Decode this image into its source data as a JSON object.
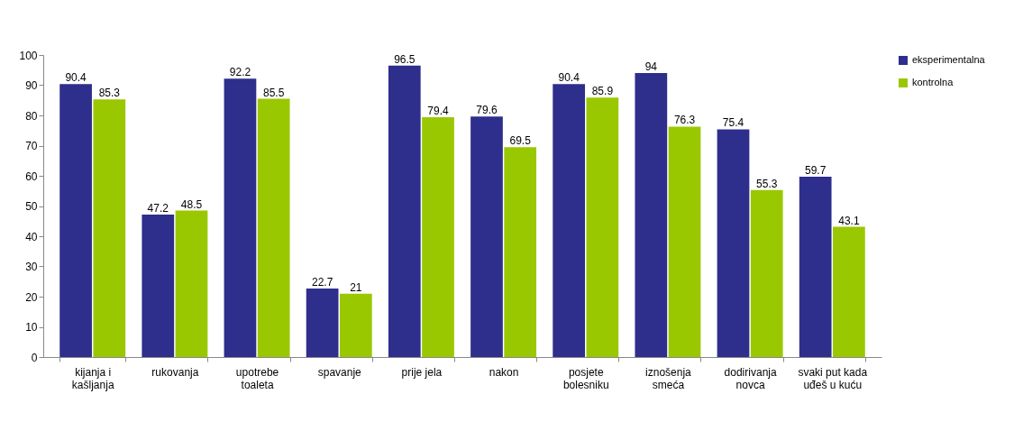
{
  "chart_data": {
    "type": "bar",
    "categories": [
      "kijanja i kašljanja",
      "rukovanja",
      "upotrebe toaleta",
      "spavanje",
      "prije  jela",
      "nakon",
      "posjete bolesniku",
      "iznošenja smeća",
      "dodirivanja novca",
      "svaki put kada uđeš u kuću"
    ],
    "series": [
      {
        "name": "eksperimentalna",
        "color": "#2e2e8c",
        "values": [
          90.4,
          47.2,
          92.2,
          22.7,
          96.5,
          79.6,
          90.4,
          94,
          75.4,
          59.7
        ]
      },
      {
        "name": "kontrolna",
        "color": "#99c800",
        "values": [
          85.3,
          48.5,
          85.5,
          21,
          79.4,
          69.5,
          85.9,
          76.3,
          55.3,
          43.1
        ]
      }
    ],
    "ylim": [
      0,
      100
    ],
    "yticks": [
      0,
      10,
      20,
      30,
      40,
      50,
      60,
      70,
      80,
      90,
      100
    ],
    "data_labels": true,
    "grid": false,
    "legend": "right"
  }
}
